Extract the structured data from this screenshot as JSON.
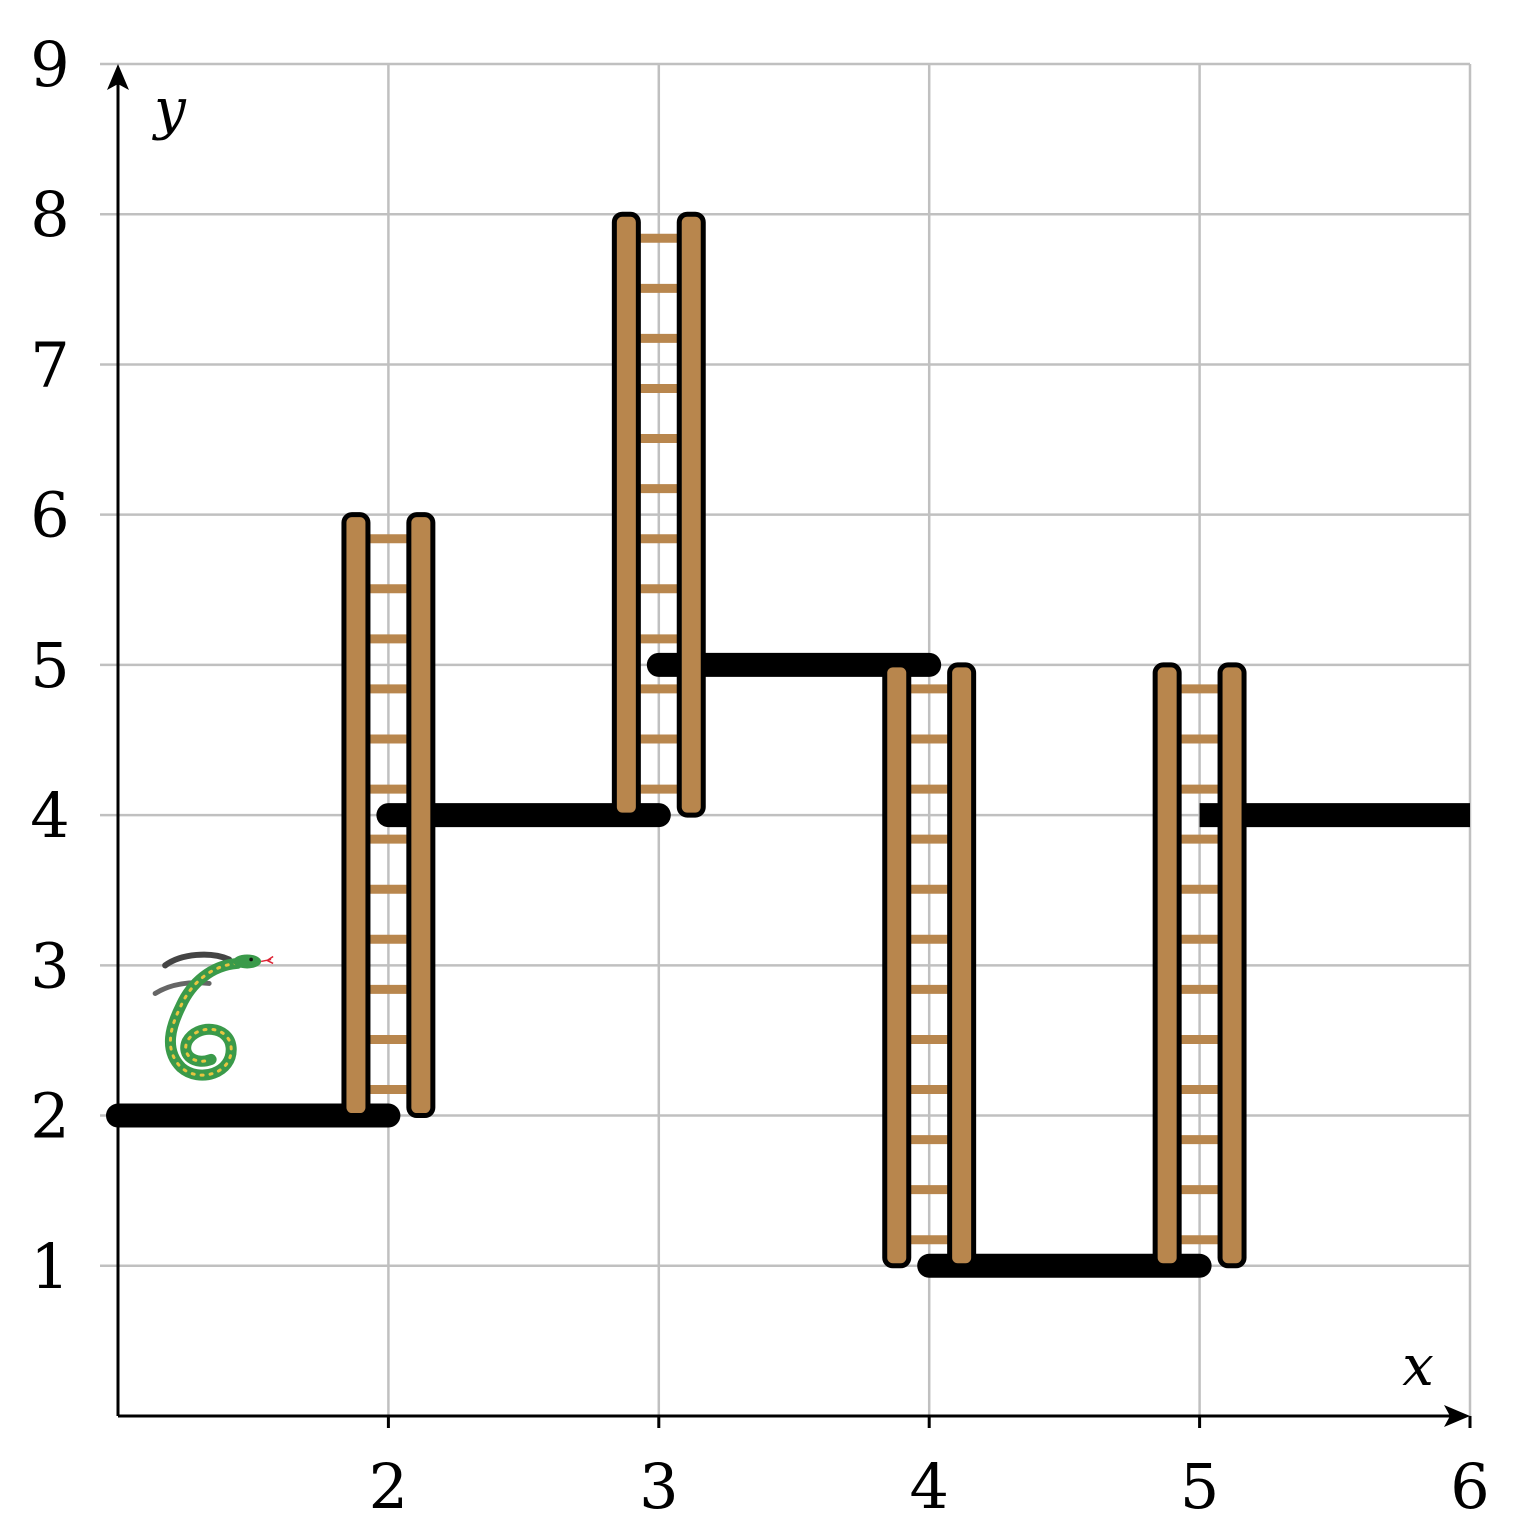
{
  "chart_data": {
    "type": "line",
    "xlabel": "x",
    "ylabel": "y",
    "xlim": [
      1,
      6
    ],
    "ylim": [
      0,
      9
    ],
    "grid": true,
    "x_ticks": [
      2,
      3,
      4,
      5,
      6
    ],
    "y_ticks": [
      1,
      2,
      3,
      4,
      5,
      6,
      7,
      8,
      9
    ],
    "x_tick_labels": [
      "2",
      "3",
      "4",
      "5",
      "6"
    ],
    "y_tick_labels": [
      "1",
      "2",
      "3",
      "4",
      "5",
      "6",
      "7",
      "8",
      "9"
    ],
    "segments": [
      {
        "x": [
          1,
          2
        ],
        "y": [
          2,
          2
        ]
      },
      {
        "x": [
          2,
          3
        ],
        "y": [
          4,
          4
        ]
      },
      {
        "x": [
          3,
          4
        ],
        "y": [
          5,
          5
        ]
      },
      {
        "x": [
          4,
          5
        ],
        "y": [
          1,
          1
        ]
      },
      {
        "x": [
          5,
          6
        ],
        "y": [
          4,
          4
        ]
      }
    ],
    "ladders": [
      {
        "x": 2,
        "y": [
          2,
          6
        ]
      },
      {
        "x": 3,
        "y": [
          4,
          8
        ]
      },
      {
        "x": 4,
        "y": [
          1,
          5
        ]
      },
      {
        "x": 5,
        "y": [
          1,
          5
        ]
      }
    ],
    "snake": {
      "x": 1.3,
      "y": 2.5
    },
    "colors": {
      "line": "#000000",
      "ladder": "#b8864d",
      "grid": "#c0c0c0",
      "snake_body": "#3a9a4a",
      "snake_spots": "#e8c540"
    }
  }
}
